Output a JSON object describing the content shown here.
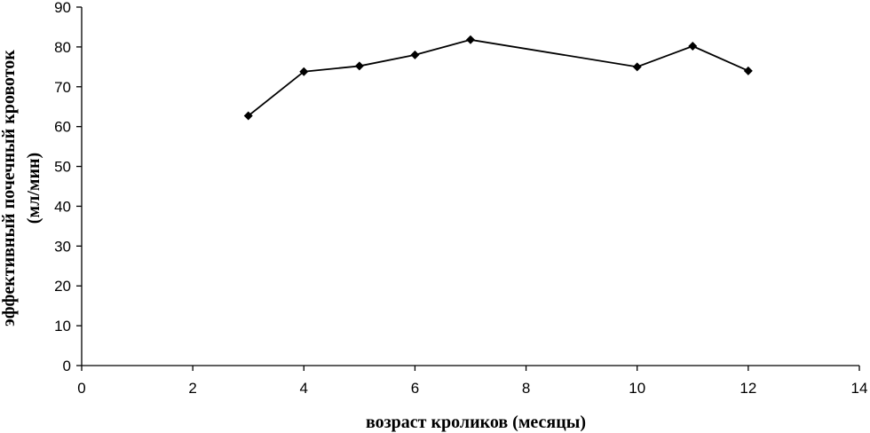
{
  "chart_data": {
    "type": "line",
    "title": "",
    "xlabel": "возраст кроликов (месяцы)",
    "ylabel_line1": "эффективный почечный кровоток",
    "ylabel_line2": "(мл/мин)",
    "xlim": [
      0,
      14
    ],
    "ylim": [
      0,
      90
    ],
    "xticks": [
      0,
      2,
      4,
      6,
      8,
      10,
      12,
      14
    ],
    "yticks": [
      0,
      10,
      20,
      30,
      40,
      50,
      60,
      70,
      80,
      90
    ],
    "grid": false,
    "legend": "none",
    "series": [
      {
        "x": [
          3,
          4,
          5,
          6,
          7,
          10,
          11,
          12
        ],
        "y": [
          62.7,
          73.8,
          75.2,
          78.0,
          81.8,
          75.0,
          80.2,
          74.0
        ],
        "color": "#000000",
        "marker": "diamond"
      }
    ]
  }
}
